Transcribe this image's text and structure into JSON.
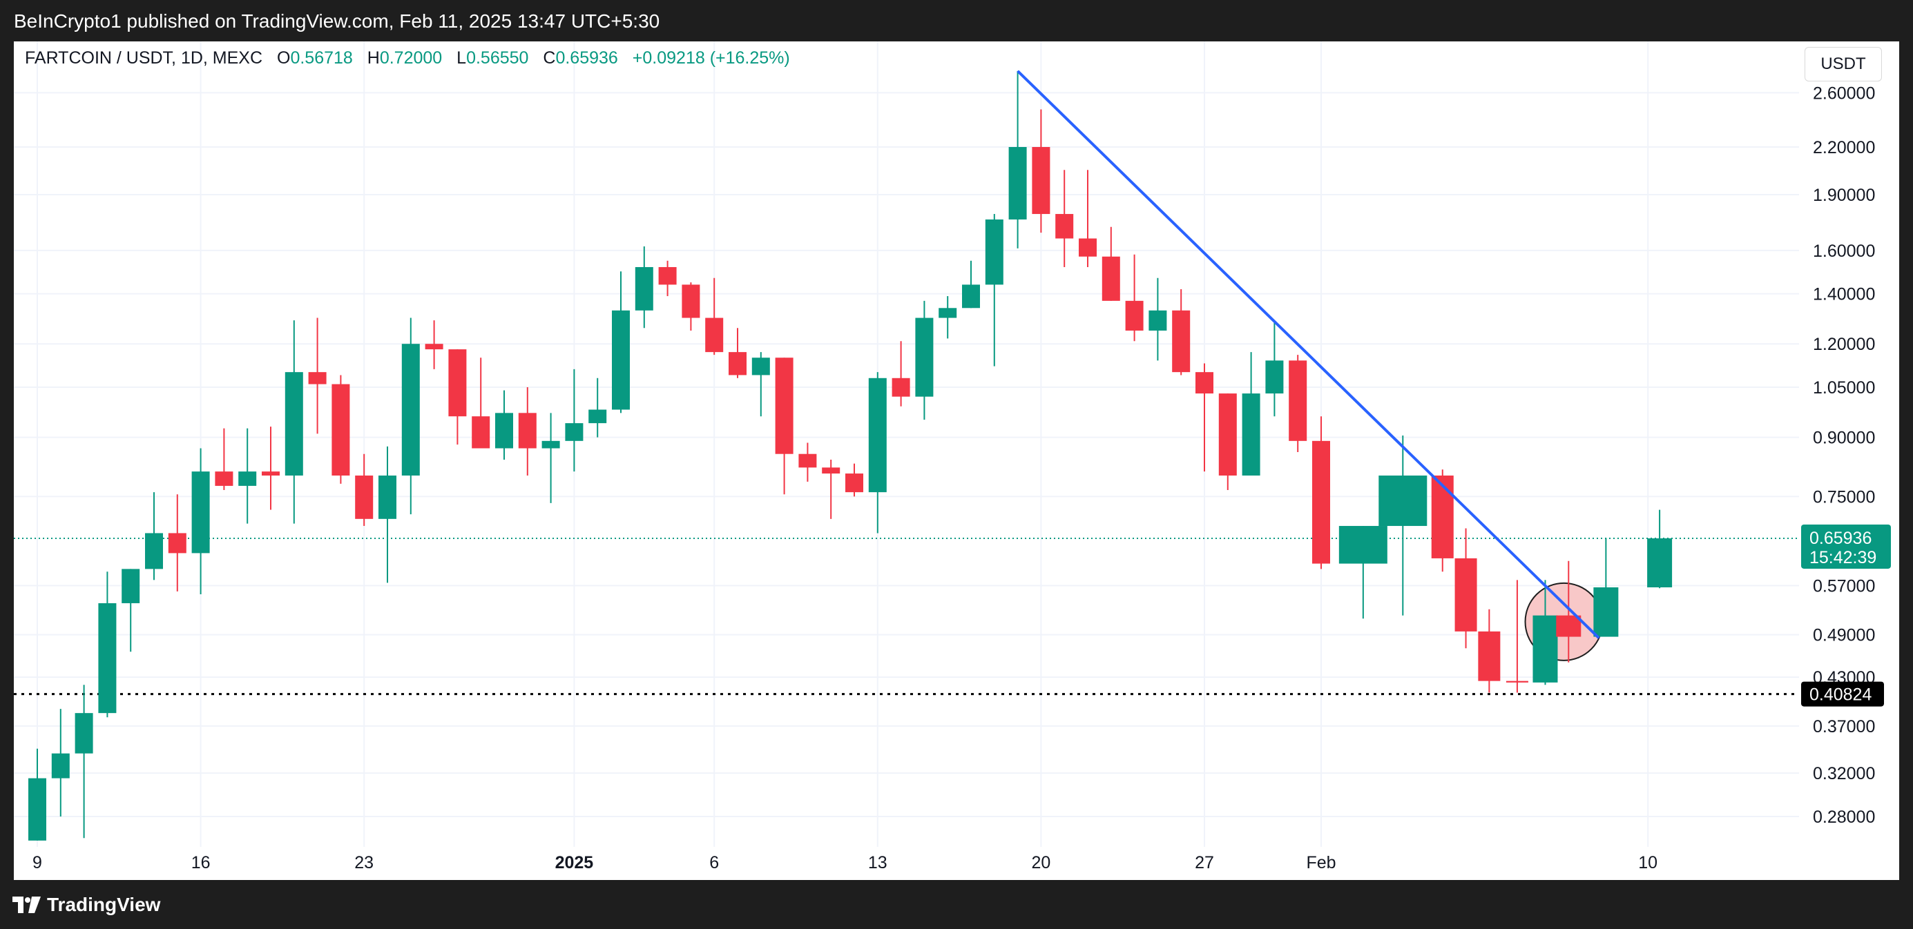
{
  "header": {
    "published": "BeInCrypto1 published on TradingView.com, Feb 11, 2025 13:47 UTC+5:30"
  },
  "legend": {
    "symbol": "FARTCOIN / USDT, 1D, MEXC",
    "o_label": "O",
    "o_value": "0.56718",
    "h_label": "H",
    "h_value": "0.72000",
    "l_label": "L",
    "l_value": "0.56550",
    "c_label": "C",
    "c_value": "0.65936",
    "change": "+0.09218 (+16.25%)"
  },
  "currency_button": "USDT",
  "price_label": {
    "value": "0.65936",
    "countdown": "15:42:39"
  },
  "support_label": "0.40824",
  "footer": {
    "brand": "TradingView"
  },
  "colors": {
    "up": "#089981",
    "down": "#F23645",
    "trendline": "#2962FF",
    "price_line": "#089981",
    "support": "#000000",
    "highlight_fill": "#F8C8C8"
  },
  "chart_data": {
    "type": "candlestick",
    "title": "FARTCOIN / USDT, 1D, MEXC",
    "y_scale": "log",
    "ylim": [
      0.255,
      2.9
    ],
    "grid": true,
    "y_ticks": [
      "2.60000",
      "2.20000",
      "1.90000",
      "1.60000",
      "1.40000",
      "1.20000",
      "1.05000",
      "0.90000",
      "0.75000",
      "0.57000",
      "0.49000",
      "0.43000",
      "0.37000",
      "0.32000",
      "0.28000"
    ],
    "x_ticks": [
      {
        "label": "9",
        "index": 0
      },
      {
        "label": "16",
        "index": 7
      },
      {
        "label": "23",
        "index": 14
      },
      {
        "label": "2025",
        "index": 23,
        "bold": true
      },
      {
        "label": "6",
        "index": 29
      },
      {
        "label": "13",
        "index": 36
      },
      {
        "label": "20",
        "index": 43
      },
      {
        "label": "27",
        "index": 50
      },
      {
        "label": "Feb",
        "index": 55
      },
      {
        "label": "10",
        "index": 69
      }
    ],
    "candles": [
      {
        "o": 0.26,
        "h": 0.345,
        "l": 0.26,
        "c": 0.315
      },
      {
        "o": 0.315,
        "h": 0.39,
        "l": 0.28,
        "c": 0.34
      },
      {
        "o": 0.34,
        "h": 0.42,
        "l": 0.262,
        "c": 0.385
      },
      {
        "o": 0.385,
        "h": 0.595,
        "l": 0.38,
        "c": 0.54
      },
      {
        "o": 0.54,
        "h": 0.6,
        "l": 0.465,
        "c": 0.6
      },
      {
        "o": 0.6,
        "h": 0.76,
        "l": 0.58,
        "c": 0.67
      },
      {
        "o": 0.67,
        "h": 0.755,
        "l": 0.56,
        "c": 0.63
      },
      {
        "o": 0.63,
        "h": 0.87,
        "l": 0.555,
        "c": 0.81
      },
      {
        "o": 0.81,
        "h": 0.925,
        "l": 0.765,
        "c": 0.775
      },
      {
        "o": 0.775,
        "h": 0.925,
        "l": 0.69,
        "c": 0.81
      },
      {
        "o": 0.81,
        "h": 0.93,
        "l": 0.72,
        "c": 0.8
      },
      {
        "o": 0.8,
        "h": 1.29,
        "l": 0.69,
        "c": 1.1
      },
      {
        "o": 1.1,
        "h": 1.3,
        "l": 0.91,
        "c": 1.06
      },
      {
        "o": 1.06,
        "h": 1.09,
        "l": 0.78,
        "c": 0.8
      },
      {
        "o": 0.8,
        "h": 0.855,
        "l": 0.685,
        "c": 0.7
      },
      {
        "o": 0.7,
        "h": 0.875,
        "l": 0.575,
        "c": 0.8
      },
      {
        "o": 0.8,
        "h": 1.3,
        "l": 0.71,
        "c": 1.2
      },
      {
        "o": 1.2,
        "h": 1.29,
        "l": 1.11,
        "c": 1.18
      },
      {
        "o": 1.18,
        "h": 1.18,
        "l": 0.88,
        "c": 0.96
      },
      {
        "o": 0.96,
        "h": 1.15,
        "l": 0.87,
        "c": 0.87
      },
      {
        "o": 0.87,
        "h": 1.04,
        "l": 0.84,
        "c": 0.97
      },
      {
        "o": 0.97,
        "h": 1.05,
        "l": 0.8,
        "c": 0.87
      },
      {
        "o": 0.87,
        "h": 0.97,
        "l": 0.735,
        "c": 0.89
      },
      {
        "o": 0.89,
        "h": 1.11,
        "l": 0.81,
        "c": 0.94
      },
      {
        "o": 0.94,
        "h": 1.08,
        "l": 0.9,
        "c": 0.98
      },
      {
        "o": 0.98,
        "h": 1.5,
        "l": 0.97,
        "c": 1.33
      },
      {
        "o": 1.33,
        "h": 1.62,
        "l": 1.26,
        "c": 1.52
      },
      {
        "o": 1.52,
        "h": 1.55,
        "l": 1.39,
        "c": 1.44
      },
      {
        "o": 1.44,
        "h": 1.45,
        "l": 1.25,
        "c": 1.3
      },
      {
        "o": 1.3,
        "h": 1.47,
        "l": 1.16,
        "c": 1.17
      },
      {
        "o": 1.17,
        "h": 1.26,
        "l": 1.08,
        "c": 1.09
      },
      {
        "o": 1.09,
        "h": 1.17,
        "l": 0.96,
        "c": 1.15
      },
      {
        "o": 1.15,
        "h": 1.15,
        "l": 0.755,
        "c": 0.855
      },
      {
        "o": 0.855,
        "h": 0.885,
        "l": 0.785,
        "c": 0.82
      },
      {
        "o": 0.82,
        "h": 0.84,
        "l": 0.7,
        "c": 0.805
      },
      {
        "o": 0.805,
        "h": 0.83,
        "l": 0.75,
        "c": 0.76
      },
      {
        "o": 0.76,
        "h": 1.1,
        "l": 0.67,
        "c": 1.08
      },
      {
        "o": 1.08,
        "h": 1.21,
        "l": 0.99,
        "c": 1.02
      },
      {
        "o": 1.02,
        "h": 1.37,
        "l": 0.95,
        "c": 1.3
      },
      {
        "o": 1.3,
        "h": 1.39,
        "l": 1.22,
        "c": 1.34
      },
      {
        "o": 1.34,
        "h": 1.55,
        "l": 1.34,
        "c": 1.44
      },
      {
        "o": 1.44,
        "h": 1.79,
        "l": 1.12,
        "c": 1.76
      },
      {
        "o": 1.76,
        "h": 2.78,
        "l": 1.61,
        "c": 2.2
      },
      {
        "o": 2.2,
        "h": 2.47,
        "l": 1.69,
        "c": 1.79
      },
      {
        "o": 1.79,
        "h": 2.05,
        "l": 1.52,
        "c": 1.66
      },
      {
        "o": 1.66,
        "h": 2.05,
        "l": 1.52,
        "c": 1.57
      },
      {
        "o": 1.57,
        "h": 1.72,
        "l": 1.37,
        "c": 1.37
      },
      {
        "o": 1.37,
        "h": 1.58,
        "l": 1.21,
        "c": 1.25
      },
      {
        "o": 1.25,
        "h": 1.47,
        "l": 1.14,
        "c": 1.33
      },
      {
        "o": 1.33,
        "h": 1.42,
        "l": 1.09,
        "c": 1.1
      },
      {
        "o": 1.1,
        "h": 1.13,
        "l": 0.81,
        "c": 1.03
      },
      {
        "o": 1.03,
        "h": 1.03,
        "l": 0.765,
        "c": 0.8
      },
      {
        "o": 0.8,
        "h": 1.17,
        "l": 0.8,
        "c": 1.03
      },
      {
        "o": 1.03,
        "h": 1.28,
        "l": 0.96,
        "c": 1.14
      },
      {
        "o": 1.14,
        "h": 1.16,
        "l": 0.86,
        "c": 0.89
      },
      {
        "o": 0.89,
        "h": 0.96,
        "l": 0.6,
        "c": 0.61
      },
      {
        "o": 0.61,
        "h": 0.685,
        "l": 0.515,
        "c": 0.685
      },
      {
        "o": 0.685,
        "h": 0.905,
        "l": 0.52,
        "c": 0.8
      },
      {
        "o": 0.8,
        "h": 0.815,
        "l": 0.595,
        "c": 0.62
      },
      {
        "o": 0.62,
        "h": 0.68,
        "l": 0.47,
        "c": 0.495
      },
      {
        "o": 0.495,
        "h": 0.53,
        "l": 0.41,
        "c": 0.425
      },
      {
        "o": 0.425,
        "h": 0.58,
        "l": 0.41,
        "c": 0.423
      },
      {
        "o": 0.423,
        "h": 0.58,
        "l": 0.42,
        "c": 0.52
      },
      {
        "o": 0.52,
        "h": 0.615,
        "l": 0.45,
        "c": 0.487
      },
      {
        "o": 0.487,
        "h": 0.66,
        "l": 0.487,
        "c": 0.567
      },
      {
        "o": 0.567,
        "h": 0.72,
        "l": 0.5655,
        "c": 0.65936
      }
    ],
    "candle_positions": [
      {
        "i": 0,
        "x": 0
      },
      {
        "i": 1,
        "x": 1
      },
      {
        "i": 2,
        "x": 2
      },
      {
        "i": 3,
        "x": 3
      },
      {
        "i": 4,
        "x": 4
      },
      {
        "i": 5,
        "x": 5
      },
      {
        "i": 6,
        "x": 6
      },
      {
        "i": 7,
        "x": 7
      },
      {
        "i": 8,
        "x": 8
      },
      {
        "i": 9,
        "x": 9
      },
      {
        "i": 10,
        "x": 10
      },
      {
        "i": 11,
        "x": 11
      },
      {
        "i": 12,
        "x": 12
      },
      {
        "i": 13,
        "x": 13
      },
      {
        "i": 14,
        "x": 14
      },
      {
        "i": 15,
        "x": 15
      },
      {
        "i": 16,
        "x": 16
      },
      {
        "i": 17,
        "x": 17
      },
      {
        "i": 18,
        "x": 18
      },
      {
        "i": 19,
        "x": 19
      },
      {
        "i": 20,
        "x": 20
      },
      {
        "i": 21,
        "x": 21
      },
      {
        "i": 22,
        "x": 22
      },
      {
        "i": 23,
        "x": 23
      },
      {
        "i": 24,
        "x": 24
      },
      {
        "i": 25,
        "x": 25
      },
      {
        "i": 26,
        "x": 26
      },
      {
        "i": 27,
        "x": 27
      },
      {
        "i": 28,
        "x": 28
      },
      {
        "i": 29,
        "x": 29
      },
      {
        "i": 30,
        "x": 30
      },
      {
        "i": 31,
        "x": 31
      },
      {
        "i": 32,
        "x": 32
      },
      {
        "i": 33,
        "x": 33
      },
      {
        "i": 34,
        "x": 34
      },
      {
        "i": 35,
        "x": 35
      },
      {
        "i": 36,
        "x": 36
      },
      {
        "i": 37,
        "x": 37
      },
      {
        "i": 38,
        "x": 38
      },
      {
        "i": 39,
        "x": 39
      },
      {
        "i": 40,
        "x": 40
      },
      {
        "i": 41,
        "x": 41
      },
      {
        "i": 42,
        "x": 42
      },
      {
        "i": 43,
        "x": 43
      },
      {
        "i": 44,
        "x": 44
      },
      {
        "i": 45,
        "x": 45
      },
      {
        "i": 46,
        "x": 46
      },
      {
        "i": 47,
        "x": 47
      },
      {
        "i": 48,
        "x": 48
      },
      {
        "i": 49,
        "x": 49
      },
      {
        "i": 50,
        "x": 50
      },
      {
        "i": 51,
        "x": 51
      },
      {
        "i": 52,
        "x": 52
      },
      {
        "i": 53,
        "x": 53
      },
      {
        "i": 54,
        "x": 54
      },
      {
        "i": 55,
        "x": 55
      },
      {
        "i": 56,
        "x": 56.8
      },
      {
        "i": 57,
        "x": 58.5
      },
      {
        "i": 58,
        "x": 60.2
      },
      {
        "i": 59,
        "x": 61.2
      },
      {
        "i": 60,
        "x": 62.2
      },
      {
        "i": 61,
        "x": 63.4
      },
      {
        "i": 62,
        "x": 64.6
      },
      {
        "i": 63,
        "x": 65.6
      },
      {
        "i": 64,
        "x": 67.2
      },
      {
        "i": 65,
        "x": 69.5
      }
    ],
    "trendline": {
      "from": {
        "index": 42,
        "price": 2.78
      },
      "to": {
        "index": 66.9,
        "price": 0.485
      }
    },
    "highlight": {
      "index": 65.4,
      "price": 0.51
    },
    "current_price": 0.65936,
    "support": 0.40824
  }
}
